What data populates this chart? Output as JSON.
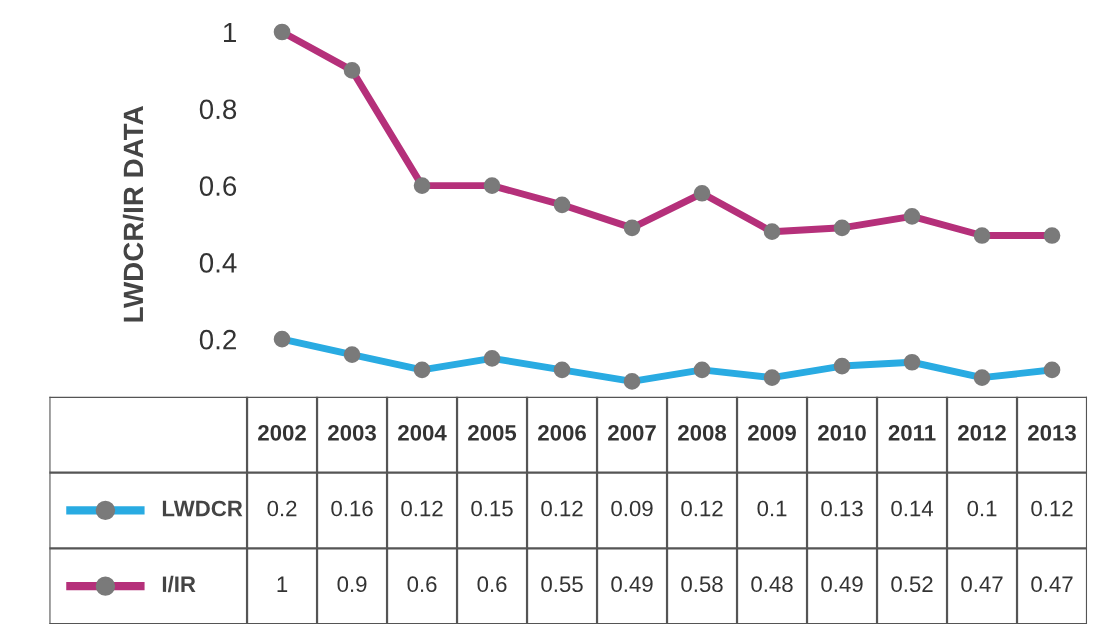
{
  "chart_data": {
    "type": "line",
    "ylabel": "LWDCR/IR DATA",
    "categories": [
      "2002",
      "2003",
      "2004",
      "2005",
      "2006",
      "2007",
      "2008",
      "2009",
      "2010",
      "2011",
      "2012",
      "2013"
    ],
    "series": [
      {
        "name": "LWDCR",
        "color": "#29abe2",
        "values": [
          0.2,
          0.16,
          0.12,
          0.15,
          0.12,
          0.09,
          0.12,
          0.1,
          0.13,
          0.14,
          0.1,
          0.12
        ]
      },
      {
        "name": "I/IR",
        "color": "#b5307a",
        "values": [
          1,
          0.9,
          0.6,
          0.6,
          0.55,
          0.49,
          0.58,
          0.48,
          0.49,
          0.52,
          0.47,
          0.47
        ]
      }
    ],
    "ylim": [
      0.05,
      1
    ],
    "yticks": [
      0.2,
      0.4,
      0.6,
      0.8,
      1
    ],
    "marker": "circle",
    "line_style": "solid",
    "grid": false,
    "legend": "bottom",
    "data_labels": true
  }
}
